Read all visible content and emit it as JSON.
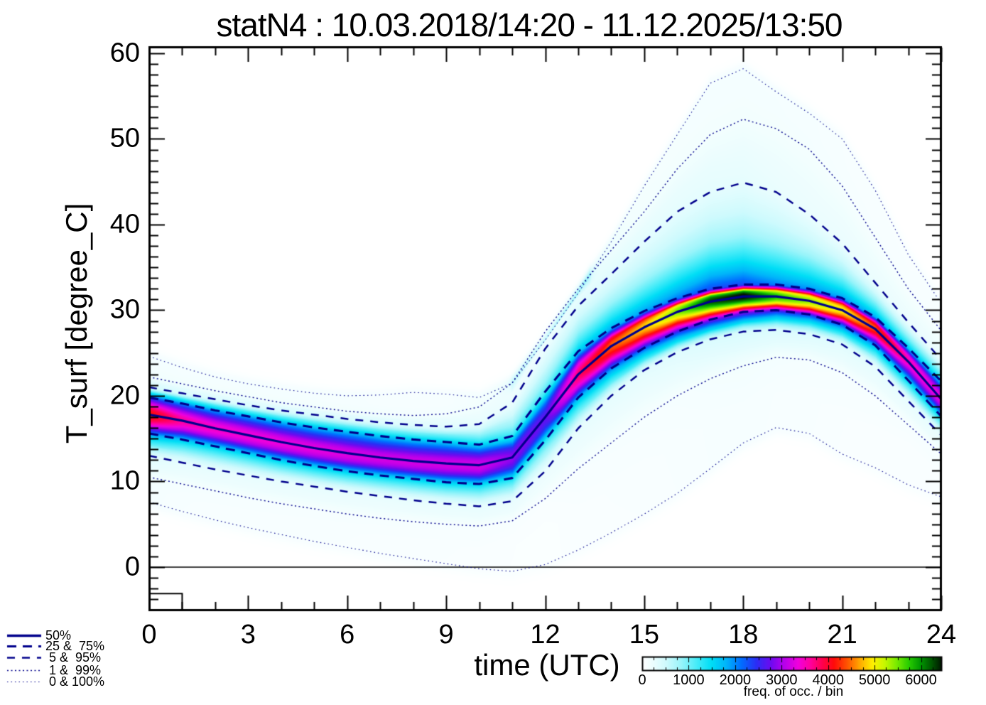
{
  "title": "statN4 : 10.03.2018/14:20 - 11.12.2025/13:50",
  "axes": {
    "xlabel": "time (UTC)",
    "ylabel": "T_surf [degree_C]",
    "x_ticks": [
      0,
      3,
      6,
      9,
      12,
      15,
      18,
      21,
      24
    ],
    "x_minor_step": 1,
    "y_ticks": [
      0,
      10,
      20,
      30,
      40,
      50,
      60
    ],
    "y_minor_step": 1.25,
    "xlim": [
      0,
      24
    ],
    "ylim": [
      -5.15,
      60.83
    ]
  },
  "legend": {
    "line_color": "#00008c",
    "items": [
      {
        "label": "50%",
        "series": "p50",
        "style": "solid",
        "width": 3.2,
        "dash": []
      },
      {
        "label": "25 &  75%",
        "series": "p25,p75",
        "style": "dashed-long",
        "width": 3.1,
        "dash": [
          13,
          9
        ]
      },
      {
        "label": " 5 &  95%",
        "series": "p5,p95",
        "style": "dashed",
        "width": 2.5,
        "dash": [
          11,
          10
        ]
      },
      {
        "label": " 1 &  99%",
        "series": "p1,p99",
        "style": "dotted",
        "width": 1.4,
        "dash": [
          2,
          3.5
        ]
      },
      {
        "label": " 0 & 100%",
        "series": "p0,p100",
        "style": "dotted-fine",
        "width": 1.1,
        "dash": [
          1.5,
          4
        ]
      }
    ]
  },
  "colorbar": {
    "label": "freq. of occ. / bin",
    "ticks": [
      0,
      1000,
      2000,
      3000,
      4000,
      5000,
      6000
    ],
    "minor_tick_step": 250,
    "max_value": 6450,
    "stops": [
      [
        0.0,
        255,
        255,
        255
      ],
      [
        0.04,
        233,
        253,
        254
      ],
      [
        0.08,
        206,
        250,
        253
      ],
      [
        0.13,
        152,
        244,
        250
      ],
      [
        0.18,
        72,
        236,
        248
      ],
      [
        0.23,
        0,
        222,
        246
      ],
      [
        0.28,
        0,
        180,
        250
      ],
      [
        0.33,
        0,
        110,
        255
      ],
      [
        0.38,
        42,
        46,
        245
      ],
      [
        0.43,
        110,
        10,
        240
      ],
      [
        0.47,
        178,
        0,
        236
      ],
      [
        0.52,
        240,
        0,
        221
      ],
      [
        0.56,
        255,
        0,
        160
      ],
      [
        0.6,
        255,
        0,
        80
      ],
      [
        0.64,
        255,
        10,
        10
      ],
      [
        0.69,
        255,
        95,
        0
      ],
      [
        0.73,
        255,
        175,
        0
      ],
      [
        0.77,
        255,
        240,
        0
      ],
      [
        0.81,
        198,
        247,
        0
      ],
      [
        0.85,
        120,
        235,
        0
      ],
      [
        0.89,
        40,
        205,
        0
      ],
      [
        0.93,
        0,
        150,
        0
      ],
      [
        0.97,
        0,
        80,
        0
      ],
      [
        1.0,
        0,
        22,
        0
      ]
    ]
  },
  "chart_data": {
    "type": "heatmap",
    "description": "2D frequency-of-occurrence histogram of surface temperature vs time of day, with percentile contour lines overlaid",
    "xlabel": "time (UTC)",
    "ylabel": "T_surf [degree_C]",
    "xlim": [
      0,
      24
    ],
    "ylim": [
      -5.15,
      60.83
    ],
    "x_hours": [
      0,
      1,
      2,
      3,
      4,
      5,
      6,
      7,
      8,
      9,
      10,
      11,
      12,
      13,
      14,
      15,
      16,
      17,
      18,
      19,
      20,
      21,
      22,
      23,
      24
    ],
    "quantile_levels_percent": [
      0,
      1,
      5,
      25,
      50,
      75,
      95,
      99,
      100
    ],
    "quantile_series": {
      "p0": [
        7.6,
        6.5,
        5.5,
        4.6,
        3.8,
        3.0,
        2.3,
        1.6,
        1.0,
        0.4,
        -0.2,
        -0.5,
        0.3,
        2.0,
        4.0,
        6.2,
        8.6,
        11.5,
        14.5,
        16.3,
        15.6,
        13.2,
        11.6,
        9.6,
        8.2
      ],
      "p1": [
        10.5,
        9.7,
        8.9,
        8.1,
        7.4,
        6.8,
        6.2,
        5.7,
        5.3,
        5.0,
        4.8,
        5.4,
        8.0,
        11.5,
        14.5,
        17.5,
        20.0,
        22.0,
        23.5,
        24.5,
        24.2,
        22.7,
        20.0,
        16.6,
        13.2
      ],
      "p5": [
        13.0,
        12.2,
        11.4,
        10.7,
        10.0,
        9.4,
        8.8,
        8.3,
        7.8,
        7.4,
        7.1,
        7.7,
        11.2,
        16.2,
        20.0,
        23.0,
        25.1,
        26.6,
        27.5,
        27.7,
        27.2,
        26.0,
        23.4,
        19.4,
        15.4
      ],
      "p25": [
        15.6,
        14.9,
        14.1,
        13.3,
        12.5,
        11.8,
        11.2,
        10.7,
        10.3,
        9.9,
        9.7,
        10.4,
        14.8,
        19.8,
        23.2,
        25.6,
        27.5,
        28.9,
        29.8,
        30.0,
        29.5,
        28.3,
        25.9,
        21.8,
        17.6
      ],
      "p50": [
        17.8,
        17.1,
        16.2,
        15.4,
        14.6,
        13.9,
        13.3,
        12.8,
        12.4,
        12.1,
        11.9,
        12.8,
        17.5,
        22.5,
        25.8,
        28.0,
        29.8,
        31.0,
        31.6,
        31.6,
        31.1,
        30.0,
        27.8,
        24.0,
        19.6
      ],
      "p75": [
        19.8,
        19.1,
        18.3,
        17.6,
        16.9,
        16.3,
        15.8,
        15.3,
        14.9,
        14.6,
        14.3,
        15.3,
        20.5,
        25.2,
        27.9,
        29.9,
        31.4,
        32.5,
        33.0,
        33.0,
        32.5,
        31.4,
        29.2,
        25.6,
        21.7
      ],
      "p95": [
        21.0,
        20.3,
        19.6,
        18.9,
        18.3,
        17.8,
        17.3,
        16.9,
        16.6,
        16.4,
        16.7,
        19.2,
        25.5,
        30.5,
        34.2,
        38.0,
        41.5,
        43.8,
        44.9,
        43.8,
        41.2,
        37.8,
        33.2,
        28.6,
        24.2
      ],
      "p99": [
        22.2,
        21.4,
        20.6,
        19.9,
        19.2,
        18.7,
        18.2,
        17.9,
        17.7,
        17.9,
        18.7,
        21.5,
        27.5,
        32.5,
        37.0,
        41.5,
        46.5,
        50.5,
        52.3,
        51.2,
        48.8,
        44.5,
        38.5,
        32.5,
        27.6
      ],
      "p100": [
        24.6,
        23.3,
        22.2,
        21.4,
        20.8,
        20.3,
        20.0,
        20.1,
        20.4,
        20.2,
        19.8,
        21.5,
        26.5,
        32.0,
        38.0,
        44.5,
        50.5,
        56.5,
        58.2,
        55.5,
        53.0,
        50.0,
        44.0,
        36.5,
        30.8
      ]
    },
    "median_bin_frequency": [
      4200,
      3600,
      3450,
      3400,
      3350,
      3300,
      3250,
      3200,
      3200,
      3200,
      3200,
      2900,
      2700,
      3800,
      4400,
      4800,
      5400,
      6200,
      6500,
      5800,
      5400,
      5000,
      4300,
      3500,
      3300
    ],
    "zero_reference_line_y": 0,
    "inset_step_box": {
      "x_hours": [
        0,
        1.0
      ],
      "y_top_degC": -3.1
    }
  }
}
